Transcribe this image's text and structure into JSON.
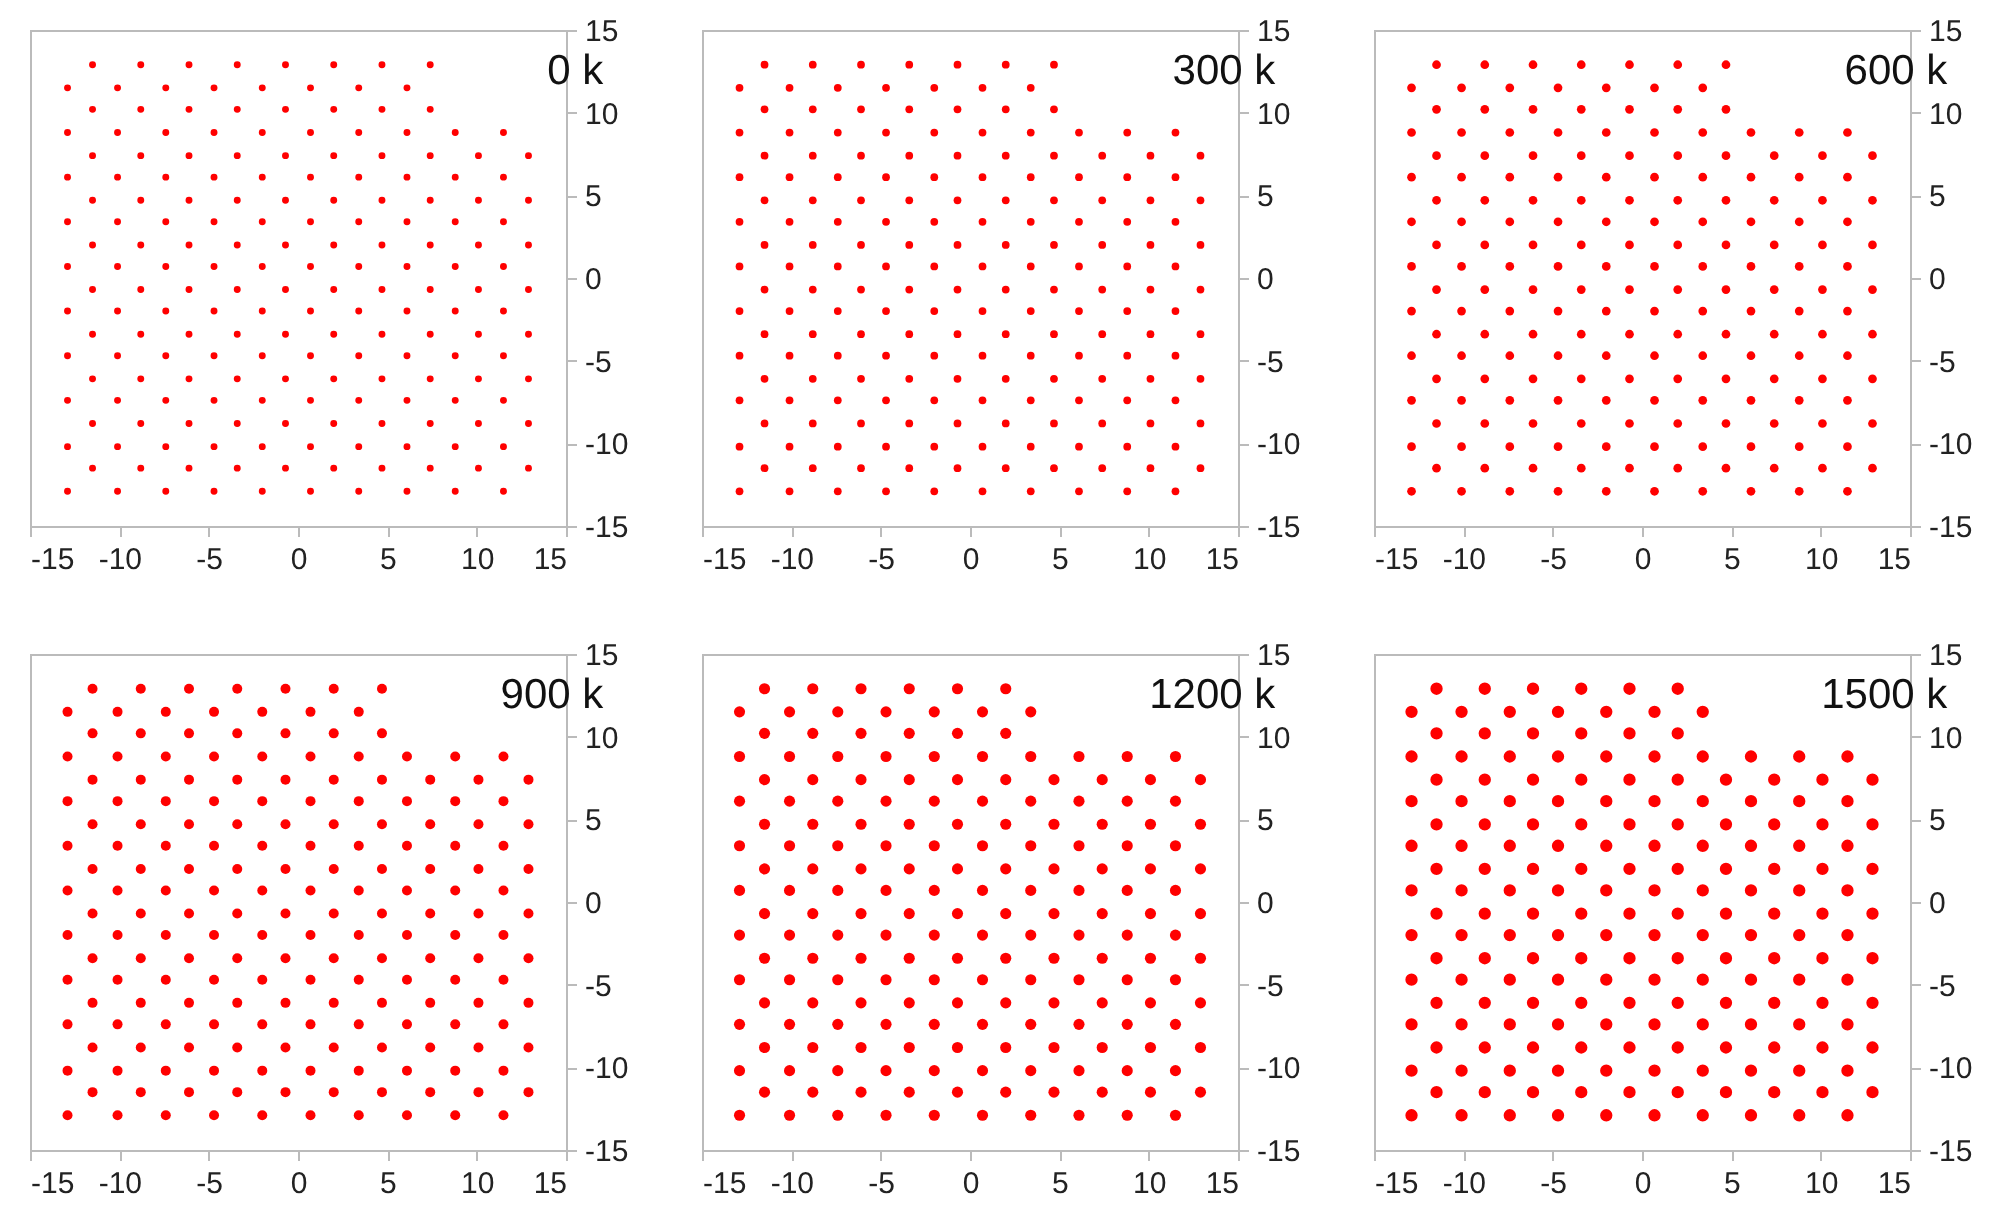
{
  "chart_data": [
    {
      "type": "scatter",
      "title": "0 k",
      "color": "#ff0000",
      "marker": "circle",
      "xlim": [
        -15,
        15
      ],
      "ylim": [
        -15,
        15
      ],
      "xticks": [
        -15,
        -10,
        -5,
        0,
        5,
        10,
        15
      ],
      "yticks": [
        -15,
        -10,
        -5,
        0,
        5,
        10,
        15
      ],
      "x": [
        -12.9,
        -10.1,
        -7.4,
        -4.7,
        -2.0,
        0.7,
        3.4,
        6.1,
        8.8,
        11.5,
        -11.5,
        -8.8,
        -6.1,
        -3.4,
        -0.7,
        2.0,
        4.7,
        7.4,
        10.1,
        12.9,
        -12.9,
        -10.1,
        -7.4,
        -4.7,
        -2.0,
        0.7,
        3.4,
        6.1,
        8.8,
        11.5,
        -11.5,
        -8.8,
        -6.1,
        -3.4,
        -0.7,
        2.0,
        4.7,
        7.4,
        10.1,
        12.9,
        -12.9,
        -10.1,
        -7.4,
        -4.7,
        -2.0,
        0.7,
        3.4,
        6.1,
        8.8,
        11.5,
        -11.5,
        -8.8,
        -6.1,
        -3.4,
        -0.7,
        2.0,
        4.7,
        7.4,
        10.1,
        12.9,
        -12.9,
        -10.1,
        -7.4,
        -4.7,
        -2.0,
        0.7,
        3.4,
        6.1,
        8.8,
        11.5,
        -11.5,
        -8.8,
        -6.1,
        -3.4,
        -0.7,
        2.0,
        4.7,
        7.4,
        10.1,
        12.9,
        -12.9,
        -10.1,
        -7.4,
        -4.7,
        -2.0,
        0.7,
        3.4,
        6.1,
        8.8,
        11.5,
        -11.5,
        -8.8,
        -6.1,
        -3.4,
        -0.7,
        2.0,
        4.7,
        7.4,
        10.1,
        12.9,
        -12.9,
        -10.1,
        -7.4,
        -4.7,
        -2.0,
        0.7,
        3.4,
        6.1,
        8.8,
        11.5,
        -11.5,
        -8.8,
        -6.1,
        -3.4,
        -0.7,
        2.0,
        4.7,
        7.4,
        10.1,
        12.9,
        -12.9,
        -10.1,
        -7.4,
        -4.7,
        -2.0,
        0.7,
        3.4,
        6.1,
        8.8,
        11.5,
        -11.5,
        -8.8,
        -6.1,
        -3.4,
        -0.7,
        2.0,
        4.7,
        7.4,
        10.1,
        12.9,
        -12.9,
        -10.1,
        -7.4,
        -4.7,
        -2.0,
        0.7,
        3.4,
        6.1,
        8.8,
        11.5,
        -11.5,
        -8.8,
        -6.1,
        -3.4,
        -0.7,
        2.0,
        4.7,
        7.4,
        10.1,
        12.9,
        -12.9,
        -10.1,
        -7.4,
        -4.7,
        -2.0,
        0.7,
        3.4,
        6.1,
        8.8,
        11.5,
        -11.5,
        -8.8,
        -6.1,
        -3.4,
        -0.7,
        2.0,
        4.7,
        7.4,
        -12.9,
        -10.1,
        -7.4,
        -4.7,
        -2.0,
        0.7,
        3.4,
        6.1,
        -11.5,
        -8.8,
        -6.1,
        -3.4,
        -0.7,
        2.0,
        4.7,
        7.4
      ],
      "values": [
        -12.9,
        -12.9,
        -12.9,
        -12.9,
        -12.9,
        -12.9,
        -12.9,
        -12.9,
        -12.9,
        -12.9,
        -11.5,
        -11.5,
        -11.5,
        -11.5,
        -11.5,
        -11.5,
        -11.5,
        -11.5,
        -11.5,
        -11.5,
        -10.2,
        -10.2,
        -10.2,
        -10.2,
        -10.2,
        -10.2,
        -10.2,
        -10.2,
        -10.2,
        -10.2,
        -8.8,
        -8.8,
        -8.8,
        -8.8,
        -8.8,
        -8.8,
        -8.8,
        -8.8,
        -8.8,
        -8.8,
        -7.4,
        -7.4,
        -7.4,
        -7.4,
        -7.4,
        -7.4,
        -7.4,
        -7.4,
        -7.4,
        -7.4,
        -6.1,
        -6.1,
        -6.1,
        -6.1,
        -6.1,
        -6.1,
        -6.1,
        -6.1,
        -6.1,
        -6.1,
        -4.7,
        -4.7,
        -4.7,
        -4.7,
        -4.7,
        -4.7,
        -4.7,
        -4.7,
        -4.7,
        -4.7,
        -3.4,
        -3.4,
        -3.4,
        -3.4,
        -3.4,
        -3.4,
        -3.4,
        -3.4,
        -3.4,
        -3.4,
        -2.0,
        -2.0,
        -2.0,
        -2.0,
        -2.0,
        -2.0,
        -2.0,
        -2.0,
        -2.0,
        -2.0,
        -0.7,
        -0.7,
        -0.7,
        -0.7,
        -0.7,
        -0.7,
        -0.7,
        -0.7,
        -0.7,
        -0.7,
        0.7,
        0.7,
        0.7,
        0.7,
        0.7,
        0.7,
        0.7,
        0.7,
        0.7,
        0.7,
        2.0,
        2.0,
        2.0,
        2.0,
        2.0,
        2.0,
        2.0,
        2.0,
        2.0,
        2.0,
        3.4,
        3.4,
        3.4,
        3.4,
        3.4,
        3.4,
        3.4,
        3.4,
        3.4,
        3.4,
        4.7,
        4.7,
        4.7,
        4.7,
        4.7,
        4.7,
        4.7,
        4.7,
        4.7,
        4.7,
        6.1,
        6.1,
        6.1,
        6.1,
        6.1,
        6.1,
        6.1,
        6.1,
        6.1,
        6.1,
        7.4,
        7.4,
        7.4,
        7.4,
        7.4,
        7.4,
        7.4,
        7.4,
        7.4,
        7.4,
        8.8,
        8.8,
        8.8,
        8.8,
        8.8,
        8.8,
        8.8,
        8.8,
        8.8,
        8.8,
        10.2,
        10.2,
        10.2,
        10.2,
        10.2,
        10.2,
        10.2,
        10.2,
        11.5,
        11.5,
        11.5,
        11.5,
        11.5,
        11.5,
        11.5,
        11.5,
        12.9,
        12.9,
        12.9,
        12.9,
        12.9,
        12.9,
        12.9,
        12.9
      ]
    },
    {
      "type": "scatter",
      "title": "300 k",
      "color": "#ff0000",
      "marker": "circle",
      "xlim": [
        -15,
        15
      ],
      "ylim": [
        -15,
        15
      ],
      "xticks": [
        -15,
        -10,
        -5,
        0,
        5,
        10,
        15
      ],
      "yticks": [
        -15,
        -10,
        -5,
        0,
        5,
        10,
        15
      ],
      "x": [
        -12.9,
        -10.1,
        -7.4,
        -4.7,
        -2.0,
        0.7,
        3.4,
        6.1,
        8.8,
        11.5,
        -11.5,
        -8.8,
        -6.1,
        -3.4,
        -0.7,
        2.0,
        4.7,
        7.4,
        10.1,
        12.9,
        -12.9,
        -10.1,
        -7.4,
        -4.7,
        -2.0,
        0.7,
        3.4,
        6.1,
        8.8,
        11.5,
        -11.5,
        -8.8,
        -6.1,
        -3.4,
        -0.7,
        2.0,
        4.7,
        7.4,
        10.1,
        12.9,
        -12.9,
        -10.1,
        -7.4,
        -4.7,
        -2.0,
        0.7,
        3.4,
        6.1,
        8.8,
        11.5,
        -11.5,
        -8.8,
        -6.1,
        -3.4,
        -0.7,
        2.0,
        4.7,
        7.4,
        10.1,
        12.9,
        -12.9,
        -10.1,
        -7.4,
        -4.7,
        -2.0,
        0.7,
        3.4,
        6.1,
        8.8,
        11.5,
        -11.5,
        -8.8,
        -6.1,
        -3.4,
        -0.7,
        2.0,
        4.7,
        7.4,
        10.1,
        12.9,
        -12.9,
        -10.1,
        -7.4,
        -4.7,
        -2.0,
        0.7,
        3.4,
        6.1,
        8.8,
        11.5,
        -11.5,
        -8.8,
        -6.1,
        -3.4,
        -0.7,
        2.0,
        4.7,
        7.4,
        10.1,
        12.9,
        -12.9,
        -10.1,
        -7.4,
        -4.7,
        -2.0,
        0.7,
        3.4,
        6.1,
        8.8,
        11.5,
        -11.5,
        -8.8,
        -6.1,
        -3.4,
        -0.7,
        2.0,
        4.7,
        7.4,
        10.1,
        12.9,
        -12.9,
        -10.1,
        -7.4,
        -4.7,
        -2.0,
        0.7,
        3.4,
        6.1,
        8.8,
        11.5,
        -11.5,
        -8.8,
        -6.1,
        -3.4,
        -0.7,
        2.0,
        4.7,
        7.4,
        10.1,
        12.9,
        -12.9,
        -10.1,
        -7.4,
        -4.7,
        -2.0,
        0.7,
        3.4,
        6.1,
        8.8,
        11.5,
        -11.5,
        -8.8,
        -6.1,
        -3.4,
        -0.7,
        2.0,
        4.7,
        7.4,
        10.1,
        12.9,
        -12.9,
        -10.1,
        -7.4,
        -4.7,
        -2.0,
        0.7,
        3.4,
        6.1,
        8.8,
        11.5,
        -11.5,
        -8.8,
        -6.1,
        -3.4,
        -0.7,
        2.0,
        4.7,
        -12.9,
        -10.1,
        -7.4,
        -4.7,
        -2.0,
        0.7,
        3.4,
        -11.5,
        -8.8,
        -6.1,
        -3.4,
        -0.7,
        2.0,
        4.7
      ],
      "values": [
        -12.9,
        -12.9,
        -12.9,
        -12.9,
        -12.9,
        -12.9,
        -12.9,
        -12.9,
        -12.9,
        -12.9,
        -11.5,
        -11.5,
        -11.5,
        -11.5,
        -11.5,
        -11.5,
        -11.5,
        -11.5,
        -11.5,
        -11.5,
        -10.2,
        -10.2,
        -10.2,
        -10.2,
        -10.2,
        -10.2,
        -10.2,
        -10.2,
        -10.2,
        -10.2,
        -8.8,
        -8.8,
        -8.8,
        -8.8,
        -8.8,
        -8.8,
        -8.8,
        -8.8,
        -8.8,
        -8.8,
        -7.4,
        -7.4,
        -7.4,
        -7.4,
        -7.4,
        -7.4,
        -7.4,
        -7.4,
        -7.4,
        -7.4,
        -6.1,
        -6.1,
        -6.1,
        -6.1,
        -6.1,
        -6.1,
        -6.1,
        -6.1,
        -6.1,
        -6.1,
        -4.7,
        -4.7,
        -4.7,
        -4.7,
        -4.7,
        -4.7,
        -4.7,
        -4.7,
        -4.7,
        -4.7,
        -3.4,
        -3.4,
        -3.4,
        -3.4,
        -3.4,
        -3.4,
        -3.4,
        -3.4,
        -3.4,
        -3.4,
        -2.0,
        -2.0,
        -2.0,
        -2.0,
        -2.0,
        -2.0,
        -2.0,
        -2.0,
        -2.0,
        -2.0,
        -0.7,
        -0.7,
        -0.7,
        -0.7,
        -0.7,
        -0.7,
        -0.7,
        -0.7,
        -0.7,
        -0.7,
        0.7,
        0.7,
        0.7,
        0.7,
        0.7,
        0.7,
        0.7,
        0.7,
        0.7,
        0.7,
        2.0,
        2.0,
        2.0,
        2.0,
        2.0,
        2.0,
        2.0,
        2.0,
        2.0,
        2.0,
        3.4,
        3.4,
        3.4,
        3.4,
        3.4,
        3.4,
        3.4,
        3.4,
        3.4,
        3.4,
        4.7,
        4.7,
        4.7,
        4.7,
        4.7,
        4.7,
        4.7,
        4.7,
        4.7,
        4.7,
        6.1,
        6.1,
        6.1,
        6.1,
        6.1,
        6.1,
        6.1,
        6.1,
        6.1,
        6.1,
        7.4,
        7.4,
        7.4,
        7.4,
        7.4,
        7.4,
        7.4,
        7.4,
        7.4,
        7.4,
        8.8,
        8.8,
        8.8,
        8.8,
        8.8,
        8.8,
        8.8,
        8.8,
        8.8,
        8.8,
        10.2,
        10.2,
        10.2,
        10.2,
        10.2,
        10.2,
        10.2,
        11.5,
        11.5,
        11.5,
        11.5,
        11.5,
        11.5,
        11.5,
        12.9,
        12.9,
        12.9,
        12.9,
        12.9,
        12.9,
        12.9
      ]
    },
    {
      "type": "scatter",
      "title": "600 k",
      "color": "#ff0000",
      "marker": "circle",
      "xlim": [
        -15,
        15
      ],
      "ylim": [
        -15,
        15
      ],
      "xticks": [
        -15,
        -10,
        -5,
        0,
        5,
        10,
        15
      ],
      "yticks": [
        -15,
        -10,
        -5,
        0,
        5,
        10,
        15
      ],
      "x": [
        -12.9,
        -10.1,
        -7.4,
        -4.7,
        -2.0,
        0.7,
        3.4,
        6.1,
        8.8,
        11.5,
        -11.5,
        -8.8,
        -6.1,
        -3.4,
        -0.7,
        2.0,
        4.7,
        7.4,
        10.1,
        12.9,
        -12.9,
        -10.1,
        -7.4,
        -4.7,
        -2.0,
        0.7,
        3.4,
        6.1,
        8.8,
        11.5,
        -11.5,
        -8.8,
        -6.1,
        -3.4,
        -0.7,
        2.0,
        4.7,
        7.4,
        10.1,
        12.9,
        -12.9,
        -10.1,
        -7.4,
        -4.7,
        -2.0,
        0.7,
        3.4,
        6.1,
        8.8,
        11.5,
        -11.5,
        -8.8,
        -6.1,
        -3.4,
        -0.7,
        2.0,
        4.7,
        7.4,
        10.1,
        12.9,
        -12.9,
        -10.1,
        -7.4,
        -4.7,
        -2.0,
        0.7,
        3.4,
        6.1,
        8.8,
        11.5,
        -11.5,
        -8.8,
        -6.1,
        -3.4,
        -0.7,
        2.0,
        4.7,
        7.4,
        10.1,
        12.9,
        -12.9,
        -10.1,
        -7.4,
        -4.7,
        -2.0,
        0.7,
        3.4,
        6.1,
        8.8,
        11.5,
        -11.5,
        -8.8,
        -6.1,
        -3.4,
        -0.7,
        2.0,
        4.7,
        7.4,
        10.1,
        12.9,
        -12.9,
        -10.1,
        -7.4,
        -4.7,
        -2.0,
        0.7,
        3.4,
        6.1,
        8.8,
        11.5,
        -11.5,
        -8.8,
        -6.1,
        -3.4,
        -0.7,
        2.0,
        4.7,
        7.4,
        10.1,
        12.9,
        -12.9,
        -10.1,
        -7.4,
        -4.7,
        -2.0,
        0.7,
        3.4,
        6.1,
        8.8,
        11.5,
        -11.5,
        -8.8,
        -6.1,
        -3.4,
        -0.7,
        2.0,
        4.7,
        7.4,
        10.1,
        12.9,
        -12.9,
        -10.1,
        -7.4,
        -4.7,
        -2.0,
        0.7,
        3.4,
        6.1,
        8.8,
        11.5,
        -11.5,
        -8.8,
        -6.1,
        -3.4,
        -0.7,
        2.0,
        4.7,
        7.4,
        10.1,
        12.9,
        -12.9,
        -10.1,
        -7.4,
        -4.7,
        -2.0,
        0.7,
        3.4,
        6.1,
        8.8,
        11.5,
        -11.5,
        -8.8,
        -6.1,
        -3.4,
        -0.7,
        2.0,
        4.7,
        -12.9,
        -10.1,
        -7.4,
        -4.7,
        -2.0,
        0.7,
        3.4,
        -11.5,
        -8.8,
        -6.1,
        -3.4,
        -0.7,
        2.0,
        4.7
      ],
      "values": [
        -12.9,
        -12.9,
        -12.9,
        -12.9,
        -12.9,
        -12.9,
        -12.9,
        -12.9,
        -12.9,
        -12.9,
        -11.5,
        -11.5,
        -11.5,
        -11.5,
        -11.5,
        -11.5,
        -11.5,
        -11.5,
        -11.5,
        -11.5,
        -10.2,
        -10.2,
        -10.2,
        -10.2,
        -10.2,
        -10.2,
        -10.2,
        -10.2,
        -10.2,
        -10.2,
        -8.8,
        -8.8,
        -8.8,
        -8.8,
        -8.8,
        -8.8,
        -8.8,
        -8.8,
        -8.8,
        -8.8,
        -7.4,
        -7.4,
        -7.4,
        -7.4,
        -7.4,
        -7.4,
        -7.4,
        -7.4,
        -7.4,
        -7.4,
        -6.1,
        -6.1,
        -6.1,
        -6.1,
        -6.1,
        -6.1,
        -6.1,
        -6.1,
        -6.1,
        -6.1,
        -4.7,
        -4.7,
        -4.7,
        -4.7,
        -4.7,
        -4.7,
        -4.7,
        -4.7,
        -4.7,
        -4.7,
        -3.4,
        -3.4,
        -3.4,
        -3.4,
        -3.4,
        -3.4,
        -3.4,
        -3.4,
        -3.4,
        -3.4,
        -2.0,
        -2.0,
        -2.0,
        -2.0,
        -2.0,
        -2.0,
        -2.0,
        -2.0,
        -2.0,
        -2.0,
        -0.7,
        -0.7,
        -0.7,
        -0.7,
        -0.7,
        -0.7,
        -0.7,
        -0.7,
        -0.7,
        -0.7,
        0.7,
        0.7,
        0.7,
        0.7,
        0.7,
        0.7,
        0.7,
        0.7,
        0.7,
        0.7,
        2.0,
        2.0,
        2.0,
        2.0,
        2.0,
        2.0,
        2.0,
        2.0,
        2.0,
        2.0,
        3.4,
        3.4,
        3.4,
        3.4,
        3.4,
        3.4,
        3.4,
        3.4,
        3.4,
        3.4,
        4.7,
        4.7,
        4.7,
        4.7,
        4.7,
        4.7,
        4.7,
        4.7,
        4.7,
        4.7,
        6.1,
        6.1,
        6.1,
        6.1,
        6.1,
        6.1,
        6.1,
        6.1,
        6.1,
        6.1,
        7.4,
        7.4,
        7.4,
        7.4,
        7.4,
        7.4,
        7.4,
        7.4,
        7.4,
        7.4,
        8.8,
        8.8,
        8.8,
        8.8,
        8.8,
        8.8,
        8.8,
        8.8,
        8.8,
        8.8,
        10.2,
        10.2,
        10.2,
        10.2,
        10.2,
        10.2,
        10.2,
        11.5,
        11.5,
        11.5,
        11.5,
        11.5,
        11.5,
        11.5,
        12.9,
        12.9,
        12.9,
        12.9,
        12.9,
        12.9,
        12.9
      ]
    },
    {
      "type": "scatter",
      "title": "900 k",
      "color": "#ff0000",
      "marker": "circle",
      "xlim": [
        -15,
        15
      ],
      "ylim": [
        -15,
        15
      ],
      "xticks": [
        -15,
        -10,
        -5,
        0,
        5,
        10,
        15
      ],
      "yticks": [
        -15,
        -10,
        -5,
        0,
        5,
        10,
        15
      ],
      "x": [
        -12.9,
        -10.1,
        -7.4,
        -4.7,
        -2.0,
        0.7,
        3.4,
        6.1,
        8.8,
        11.5,
        -11.5,
        -8.8,
        -6.1,
        -3.4,
        -0.7,
        2.0,
        4.7,
        7.4,
        10.1,
        12.9,
        -12.9,
        -10.1,
        -7.4,
        -4.7,
        -2.0,
        0.7,
        3.4,
        6.1,
        8.8,
        11.5,
        -11.5,
        -8.8,
        -6.1,
        -3.4,
        -0.7,
        2.0,
        4.7,
        7.4,
        10.1,
        12.9,
        -12.9,
        -10.1,
        -7.4,
        -4.7,
        -2.0,
        0.7,
        3.4,
        6.1,
        8.8,
        11.5,
        -11.5,
        -8.8,
        -6.1,
        -3.4,
        -0.7,
        2.0,
        4.7,
        7.4,
        10.1,
        12.9,
        -12.9,
        -10.1,
        -7.4,
        -4.7,
        -2.0,
        0.7,
        3.4,
        6.1,
        8.8,
        11.5,
        -11.5,
        -8.8,
        -6.1,
        -3.4,
        -0.7,
        2.0,
        4.7,
        7.4,
        10.1,
        12.9,
        -12.9,
        -10.1,
        -7.4,
        -4.7,
        -2.0,
        0.7,
        3.4,
        6.1,
        8.8,
        11.5,
        -11.5,
        -8.8,
        -6.1,
        -3.4,
        -0.7,
        2.0,
        4.7,
        7.4,
        10.1,
        12.9,
        -12.9,
        -10.1,
        -7.4,
        -4.7,
        -2.0,
        0.7,
        3.4,
        6.1,
        8.8,
        11.5,
        -11.5,
        -8.8,
        -6.1,
        -3.4,
        -0.7,
        2.0,
        4.7,
        7.4,
        10.1,
        12.9,
        -12.9,
        -10.1,
        -7.4,
        -4.7,
        -2.0,
        0.7,
        3.4,
        6.1,
        8.8,
        11.5,
        -11.5,
        -8.8,
        -6.1,
        -3.4,
        -0.7,
        2.0,
        4.7,
        7.4,
        10.1,
        12.9,
        -12.9,
        -10.1,
        -7.4,
        -4.7,
        -2.0,
        0.7,
        3.4,
        6.1,
        8.8,
        11.5,
        -11.5,
        -8.8,
        -6.1,
        -3.4,
        -0.7,
        2.0,
        4.7,
        7.4,
        10.1,
        12.9,
        -12.9,
        -10.1,
        -7.4,
        -4.7,
        -2.0,
        0.7,
        3.4,
        6.1,
        8.8,
        11.5,
        -11.5,
        -8.8,
        -6.1,
        -3.4,
        -0.7,
        2.0,
        4.7,
        -12.9,
        -10.1,
        -7.4,
        -4.7,
        -2.0,
        0.7,
        3.4,
        -11.5,
        -8.8,
        -6.1,
        -3.4,
        -0.7,
        2.0,
        4.7
      ],
      "values": [
        -12.9,
        -12.9,
        -12.9,
        -12.9,
        -12.9,
        -12.9,
        -12.9,
        -12.9,
        -12.9,
        -12.9,
        -11.5,
        -11.5,
        -11.5,
        -11.5,
        -11.5,
        -11.5,
        -11.5,
        -11.5,
        -11.5,
        -11.5,
        -10.2,
        -10.2,
        -10.2,
        -10.2,
        -10.2,
        -10.2,
        -10.2,
        -10.2,
        -10.2,
        -10.2,
        -8.8,
        -8.8,
        -8.8,
        -8.8,
        -8.8,
        -8.8,
        -8.8,
        -8.8,
        -8.8,
        -8.8,
        -7.4,
        -7.4,
        -7.4,
        -7.4,
        -7.4,
        -7.4,
        -7.4,
        -7.4,
        -7.4,
        -7.4,
        -6.1,
        -6.1,
        -6.1,
        -6.1,
        -6.1,
        -6.1,
        -6.1,
        -6.1,
        -6.1,
        -6.1,
        -4.7,
        -4.7,
        -4.7,
        -4.7,
        -4.7,
        -4.7,
        -4.7,
        -4.7,
        -4.7,
        -4.7,
        -3.4,
        -3.4,
        -3.4,
        -3.4,
        -3.4,
        -3.4,
        -3.4,
        -3.4,
        -3.4,
        -3.4,
        -2.0,
        -2.0,
        -2.0,
        -2.0,
        -2.0,
        -2.0,
        -2.0,
        -2.0,
        -2.0,
        -2.0,
        -0.7,
        -0.7,
        -0.7,
        -0.7,
        -0.7,
        -0.7,
        -0.7,
        -0.7,
        -0.7,
        -0.7,
        0.7,
        0.7,
        0.7,
        0.7,
        0.7,
        0.7,
        0.7,
        0.7,
        0.7,
        0.7,
        2.0,
        2.0,
        2.0,
        2.0,
        2.0,
        2.0,
        2.0,
        2.0,
        2.0,
        2.0,
        3.4,
        3.4,
        3.4,
        3.4,
        3.4,
        3.4,
        3.4,
        3.4,
        3.4,
        3.4,
        4.7,
        4.7,
        4.7,
        4.7,
        4.7,
        4.7,
        4.7,
        4.7,
        4.7,
        4.7,
        6.1,
        6.1,
        6.1,
        6.1,
        6.1,
        6.1,
        6.1,
        6.1,
        6.1,
        6.1,
        7.4,
        7.4,
        7.4,
        7.4,
        7.4,
        7.4,
        7.4,
        7.4,
        7.4,
        7.4,
        8.8,
        8.8,
        8.8,
        8.8,
        8.8,
        8.8,
        8.8,
        8.8,
        8.8,
        8.8,
        10.2,
        10.2,
        10.2,
        10.2,
        10.2,
        10.2,
        10.2,
        11.5,
        11.5,
        11.5,
        11.5,
        11.5,
        11.5,
        11.5,
        12.9,
        12.9,
        12.9,
        12.9,
        12.9,
        12.9,
        12.9
      ]
    },
    {
      "type": "scatter",
      "title": "1200 k",
      "color": "#ff0000",
      "marker": "circle",
      "xlim": [
        -15,
        15
      ],
      "ylim": [
        -15,
        15
      ],
      "xticks": [
        -15,
        -10,
        -5,
        0,
        5,
        10,
        15
      ],
      "yticks": [
        -15,
        -10,
        -5,
        0,
        5,
        10,
        15
      ],
      "x": [
        -12.9,
        -10.1,
        -7.4,
        -4.7,
        -2.0,
        0.7,
        3.4,
        6.1,
        8.8,
        11.5,
        -11.5,
        -8.8,
        -6.1,
        -3.4,
        -0.7,
        2.0,
        4.7,
        7.4,
        10.1,
        12.9,
        -12.9,
        -10.1,
        -7.4,
        -4.7,
        -2.0,
        0.7,
        3.4,
        6.1,
        8.8,
        11.5,
        -11.5,
        -8.8,
        -6.1,
        -3.4,
        -0.7,
        2.0,
        4.7,
        7.4,
        10.1,
        12.9,
        -12.9,
        -10.1,
        -7.4,
        -4.7,
        -2.0,
        0.7,
        3.4,
        6.1,
        8.8,
        11.5,
        -11.5,
        -8.8,
        -6.1,
        -3.4,
        -0.7,
        2.0,
        4.7,
        7.4,
        10.1,
        12.9,
        -12.9,
        -10.1,
        -7.4,
        -4.7,
        -2.0,
        0.7,
        3.4,
        6.1,
        8.8,
        11.5,
        -11.5,
        -8.8,
        -6.1,
        -3.4,
        -0.7,
        2.0,
        4.7,
        7.4,
        10.1,
        12.9,
        -12.9,
        -10.1,
        -7.4,
        -4.7,
        -2.0,
        0.7,
        3.4,
        6.1,
        8.8,
        11.5,
        -11.5,
        -8.8,
        -6.1,
        -3.4,
        -0.7,
        2.0,
        4.7,
        7.4,
        10.1,
        12.9,
        -12.9,
        -10.1,
        -7.4,
        -4.7,
        -2.0,
        0.7,
        3.4,
        6.1,
        8.8,
        11.5,
        -11.5,
        -8.8,
        -6.1,
        -3.4,
        -0.7,
        2.0,
        4.7,
        7.4,
        10.1,
        12.9,
        -12.9,
        -10.1,
        -7.4,
        -4.7,
        -2.0,
        0.7,
        3.4,
        6.1,
        8.8,
        11.5,
        -11.5,
        -8.8,
        -6.1,
        -3.4,
        -0.7,
        2.0,
        4.7,
        7.4,
        10.1,
        12.9,
        -12.9,
        -10.1,
        -7.4,
        -4.7,
        -2.0,
        0.7,
        3.4,
        6.1,
        8.8,
        11.5,
        -11.5,
        -8.8,
        -6.1,
        -3.4,
        -0.7,
        2.0,
        4.7,
        7.4,
        10.1,
        12.9,
        -12.9,
        -10.1,
        -7.4,
        -4.7,
        -2.0,
        0.7,
        3.4,
        6.1,
        8.8,
        11.5,
        -11.5,
        -8.8,
        -6.1,
        -3.4,
        -0.7,
        2.0,
        -12.9,
        -10.1,
        -7.4,
        -4.7,
        -2.0,
        0.7,
        3.4,
        -11.5,
        -8.8,
        -6.1,
        -3.4,
        -0.7,
        2.0
      ],
      "values": [
        -12.9,
        -12.9,
        -12.9,
        -12.9,
        -12.9,
        -12.9,
        -12.9,
        -12.9,
        -12.9,
        -12.9,
        -11.5,
        -11.5,
        -11.5,
        -11.5,
        -11.5,
        -11.5,
        -11.5,
        -11.5,
        -11.5,
        -11.5,
        -10.2,
        -10.2,
        -10.2,
        -10.2,
        -10.2,
        -10.2,
        -10.2,
        -10.2,
        -10.2,
        -10.2,
        -8.8,
        -8.8,
        -8.8,
        -8.8,
        -8.8,
        -8.8,
        -8.8,
        -8.8,
        -8.8,
        -8.8,
        -7.4,
        -7.4,
        -7.4,
        -7.4,
        -7.4,
        -7.4,
        -7.4,
        -7.4,
        -7.4,
        -7.4,
        -6.1,
        -6.1,
        -6.1,
        -6.1,
        -6.1,
        -6.1,
        -6.1,
        -6.1,
        -6.1,
        -6.1,
        -4.7,
        -4.7,
        -4.7,
        -4.7,
        -4.7,
        -4.7,
        -4.7,
        -4.7,
        -4.7,
        -4.7,
        -3.4,
        -3.4,
        -3.4,
        -3.4,
        -3.4,
        -3.4,
        -3.4,
        -3.4,
        -3.4,
        -3.4,
        -2.0,
        -2.0,
        -2.0,
        -2.0,
        -2.0,
        -2.0,
        -2.0,
        -2.0,
        -2.0,
        -2.0,
        -0.7,
        -0.7,
        -0.7,
        -0.7,
        -0.7,
        -0.7,
        -0.7,
        -0.7,
        -0.7,
        -0.7,
        0.7,
        0.7,
        0.7,
        0.7,
        0.7,
        0.7,
        0.7,
        0.7,
        0.7,
        0.7,
        2.0,
        2.0,
        2.0,
        2.0,
        2.0,
        2.0,
        2.0,
        2.0,
        2.0,
        2.0,
        3.4,
        3.4,
        3.4,
        3.4,
        3.4,
        3.4,
        3.4,
        3.4,
        3.4,
        3.4,
        4.7,
        4.7,
        4.7,
        4.7,
        4.7,
        4.7,
        4.7,
        4.7,
        4.7,
        4.7,
        6.1,
        6.1,
        6.1,
        6.1,
        6.1,
        6.1,
        6.1,
        6.1,
        6.1,
        6.1,
        7.4,
        7.4,
        7.4,
        7.4,
        7.4,
        7.4,
        7.4,
        7.4,
        7.4,
        7.4,
        8.8,
        8.8,
        8.8,
        8.8,
        8.8,
        8.8,
        8.8,
        8.8,
        8.8,
        8.8,
        10.2,
        10.2,
        10.2,
        10.2,
        10.2,
        10.2,
        11.5,
        11.5,
        11.5,
        11.5,
        11.5,
        11.5,
        11.5,
        12.9,
        12.9,
        12.9,
        12.9,
        12.9,
        12.9
      ]
    },
    {
      "type": "scatter",
      "title": "1500 k",
      "color": "#ff0000",
      "marker": "circle",
      "xlim": [
        -15,
        15
      ],
      "ylim": [
        -15,
        15
      ],
      "xticks": [
        -15,
        -10,
        -5,
        0,
        5,
        10,
        15
      ],
      "yticks": [
        -15,
        -10,
        -5,
        0,
        5,
        10,
        15
      ],
      "x": [
        -12.9,
        -10.1,
        -7.4,
        -4.7,
        -2.0,
        0.7,
        3.4,
        6.1,
        8.8,
        11.5,
        -11.5,
        -8.8,
        -6.1,
        -3.4,
        -0.7,
        2.0,
        4.7,
        7.4,
        10.1,
        12.9,
        -12.9,
        -10.1,
        -7.4,
        -4.7,
        -2.0,
        0.7,
        3.4,
        6.1,
        8.8,
        11.5,
        -11.5,
        -8.8,
        -6.1,
        -3.4,
        -0.7,
        2.0,
        4.7,
        7.4,
        10.1,
        12.9,
        -12.9,
        -10.1,
        -7.4,
        -4.7,
        -2.0,
        0.7,
        3.4,
        6.1,
        8.8,
        11.5,
        -11.5,
        -8.8,
        -6.1,
        -3.4,
        -0.7,
        2.0,
        4.7,
        7.4,
        10.1,
        12.9,
        -12.9,
        -10.1,
        -7.4,
        -4.7,
        -2.0,
        0.7,
        3.4,
        6.1,
        8.8,
        11.5,
        -11.5,
        -8.8,
        -6.1,
        -3.4,
        -0.7,
        2.0,
        4.7,
        7.4,
        10.1,
        12.9,
        -12.9,
        -10.1,
        -7.4,
        -4.7,
        -2.0,
        0.7,
        3.4,
        6.1,
        8.8,
        11.5,
        -11.5,
        -8.8,
        -6.1,
        -3.4,
        -0.7,
        2.0,
        4.7,
        7.4,
        10.1,
        12.9,
        -12.9,
        -10.1,
        -7.4,
        -4.7,
        -2.0,
        0.7,
        3.4,
        6.1,
        8.8,
        11.5,
        -11.5,
        -8.8,
        -6.1,
        -3.4,
        -0.7,
        2.0,
        4.7,
        7.4,
        10.1,
        12.9,
        -12.9,
        -10.1,
        -7.4,
        -4.7,
        -2.0,
        0.7,
        3.4,
        6.1,
        8.8,
        11.5,
        -11.5,
        -8.8,
        -6.1,
        -3.4,
        -0.7,
        2.0,
        4.7,
        7.4,
        10.1,
        12.9,
        -12.9,
        -10.1,
        -7.4,
        -4.7,
        -2.0,
        0.7,
        3.4,
        6.1,
        8.8,
        11.5,
        -11.5,
        -8.8,
        -6.1,
        -3.4,
        -0.7,
        2.0,
        4.7,
        7.4,
        10.1,
        12.9,
        -12.9,
        -10.1,
        -7.4,
        -4.7,
        -2.0,
        0.7,
        3.4,
        6.1,
        8.8,
        11.5,
        -11.5,
        -8.8,
        -6.1,
        -3.4,
        -0.7,
        2.0,
        -12.9,
        -10.1,
        -7.4,
        -4.7,
        -2.0,
        0.7,
        3.4,
        -11.5,
        -8.8,
        -6.1,
        -3.4,
        -0.7,
        2.0
      ],
      "values": [
        -12.9,
        -12.9,
        -12.9,
        -12.9,
        -12.9,
        -12.9,
        -12.9,
        -12.9,
        -12.9,
        -12.9,
        -11.5,
        -11.5,
        -11.5,
        -11.5,
        -11.5,
        -11.5,
        -11.5,
        -11.5,
        -11.5,
        -11.5,
        -10.2,
        -10.2,
        -10.2,
        -10.2,
        -10.2,
        -10.2,
        -10.2,
        -10.2,
        -10.2,
        -10.2,
        -8.8,
        -8.8,
        -8.8,
        -8.8,
        -8.8,
        -8.8,
        -8.8,
        -8.8,
        -8.8,
        -8.8,
        -7.4,
        -7.4,
        -7.4,
        -7.4,
        -7.4,
        -7.4,
        -7.4,
        -7.4,
        -7.4,
        -7.4,
        -6.1,
        -6.1,
        -6.1,
        -6.1,
        -6.1,
        -6.1,
        -6.1,
        -6.1,
        -6.1,
        -6.1,
        -4.7,
        -4.7,
        -4.7,
        -4.7,
        -4.7,
        -4.7,
        -4.7,
        -4.7,
        -4.7,
        -4.7,
        -3.4,
        -3.4,
        -3.4,
        -3.4,
        -3.4,
        -3.4,
        -3.4,
        -3.4,
        -3.4,
        -3.4,
        -2.0,
        -2.0,
        -2.0,
        -2.0,
        -2.0,
        -2.0,
        -2.0,
        -2.0,
        -2.0,
        -2.0,
        -0.7,
        -0.7,
        -0.7,
        -0.7,
        -0.7,
        -0.7,
        -0.7,
        -0.7,
        -0.7,
        -0.7,
        0.7,
        0.7,
        0.7,
        0.7,
        0.7,
        0.7,
        0.7,
        0.7,
        0.7,
        0.7,
        2.0,
        2.0,
        2.0,
        2.0,
        2.0,
        2.0,
        2.0,
        2.0,
        2.0,
        2.0,
        3.4,
        3.4,
        3.4,
        3.4,
        3.4,
        3.4,
        3.4,
        3.4,
        3.4,
        3.4,
        4.7,
        4.7,
        4.7,
        4.7,
        4.7,
        4.7,
        4.7,
        4.7,
        4.7,
        4.7,
        6.1,
        6.1,
        6.1,
        6.1,
        6.1,
        6.1,
        6.1,
        6.1,
        6.1,
        6.1,
        7.4,
        7.4,
        7.4,
        7.4,
        7.4,
        7.4,
        7.4,
        7.4,
        7.4,
        7.4,
        8.8,
        8.8,
        8.8,
        8.8,
        8.8,
        8.8,
        8.8,
        8.8,
        8.8,
        8.8,
        10.2,
        10.2,
        10.2,
        10.2,
        10.2,
        10.2,
        11.5,
        11.5,
        11.5,
        11.5,
        11.5,
        11.5,
        11.5,
        12.9,
        12.9,
        12.9,
        12.9,
        12.9,
        12.9
      ]
    }
  ]
}
